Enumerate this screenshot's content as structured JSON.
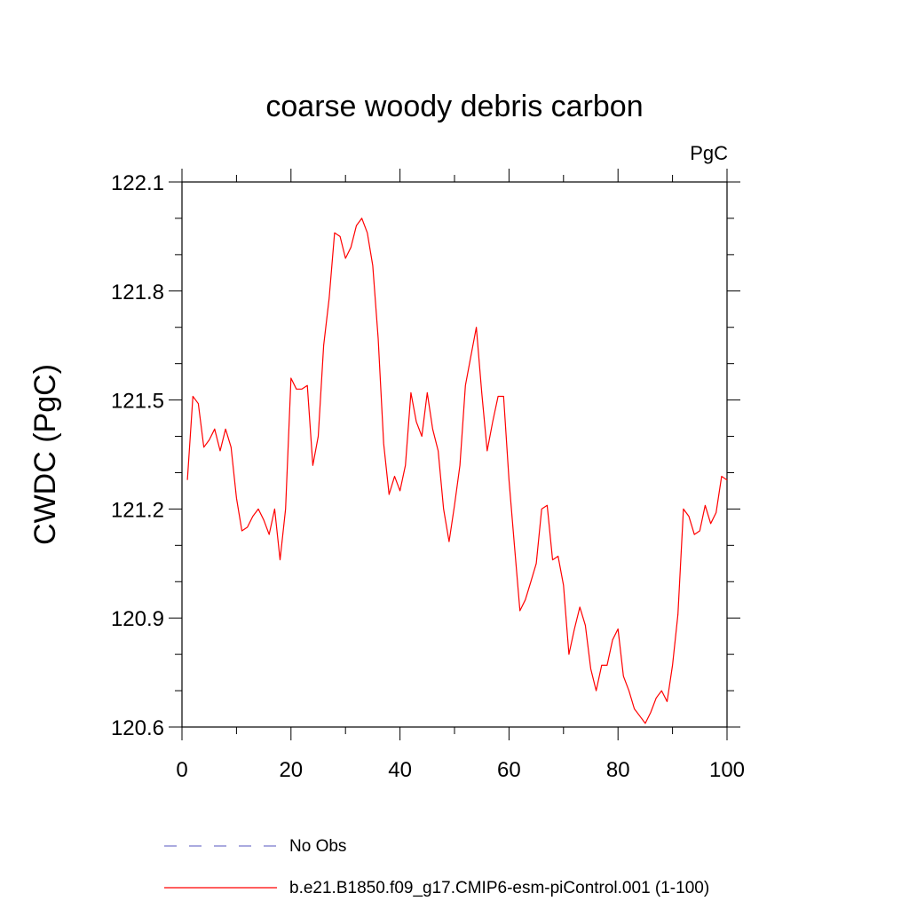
{
  "chart_data": {
    "type": "line",
    "title": "coarse woody debris carbon",
    "units": "PgC",
    "ylabel": "CWDC  (PgC)",
    "xlabel": "",
    "xlim": [
      0,
      100
    ],
    "ylim": [
      120.6,
      122.1
    ],
    "x_ticks": [
      0,
      20,
      40,
      60,
      80,
      100
    ],
    "x_tick_labels": [
      "0",
      "20",
      "40",
      "60",
      "80",
      "100"
    ],
    "y_ticks": [
      120.6,
      120.9,
      121.2,
      121.5,
      121.8,
      122.1
    ],
    "y_tick_labels": [
      "120.6",
      "120.9",
      "121.2",
      "121.5",
      "121.8",
      "122.1"
    ],
    "x_minor_step": 10,
    "y_minor_step": 0.1,
    "grid": false,
    "legend_position": "bottom",
    "legend": [
      {
        "name": "No Obs",
        "color": "#7777cc",
        "dash": true
      },
      {
        "name": "b.e21.B1850.f09_g17.CMIP6-esm-piControl.001 (1-100)",
        "color": "#ff0000",
        "dash": false
      }
    ],
    "series": [
      {
        "name": "b.e21.B1850.f09_g17.CMIP6-esm-piControl.001 (1-100)",
        "color": "#ff0000",
        "x": [
          1,
          2,
          3,
          4,
          5,
          6,
          7,
          8,
          9,
          10,
          11,
          12,
          13,
          14,
          15,
          16,
          17,
          18,
          19,
          20,
          21,
          22,
          23,
          24,
          25,
          26,
          27,
          28,
          29,
          30,
          31,
          32,
          33,
          34,
          35,
          36,
          37,
          38,
          39,
          40,
          41,
          42,
          43,
          44,
          45,
          46,
          47,
          48,
          49,
          50,
          51,
          52,
          53,
          54,
          55,
          56,
          57,
          58,
          59,
          60,
          61,
          62,
          63,
          64,
          65,
          66,
          67,
          68,
          69,
          70,
          71,
          72,
          73,
          74,
          75,
          76,
          77,
          78,
          79,
          80,
          81,
          82,
          83,
          84,
          85,
          86,
          87,
          88,
          89,
          90,
          91,
          92,
          93,
          94,
          95,
          96,
          97,
          98,
          99,
          100
        ],
        "values": [
          121.28,
          121.51,
          121.49,
          121.37,
          121.39,
          121.42,
          121.36,
          121.42,
          121.37,
          121.23,
          121.14,
          121.15,
          121.18,
          121.2,
          121.17,
          121.13,
          121.2,
          121.06,
          121.2,
          121.56,
          121.53,
          121.53,
          121.54,
          121.32,
          121.4,
          121.65,
          121.78,
          121.96,
          121.95,
          121.89,
          121.92,
          121.98,
          122.0,
          121.96,
          121.87,
          121.67,
          121.38,
          121.24,
          121.29,
          121.25,
          121.32,
          121.52,
          121.44,
          121.4,
          121.52,
          121.42,
          121.36,
          121.2,
          121.11,
          121.21,
          121.32,
          121.54,
          121.62,
          121.7,
          121.52,
          121.36,
          121.44,
          121.51,
          121.51,
          121.28,
          121.1,
          120.92,
          120.95,
          121.0,
          121.05,
          121.2,
          121.21,
          121.06,
          121.07,
          120.99,
          120.8,
          120.87,
          120.93,
          120.88,
          120.76,
          120.7,
          120.77,
          120.77,
          120.84,
          120.87,
          120.74,
          120.7,
          120.65,
          120.63,
          120.61,
          120.64,
          120.68,
          120.7,
          120.67,
          120.77,
          120.91,
          121.2,
          121.18,
          121.13,
          121.14,
          121.21,
          121.16,
          121.19,
          121.29,
          121.28
        ]
      }
    ]
  }
}
